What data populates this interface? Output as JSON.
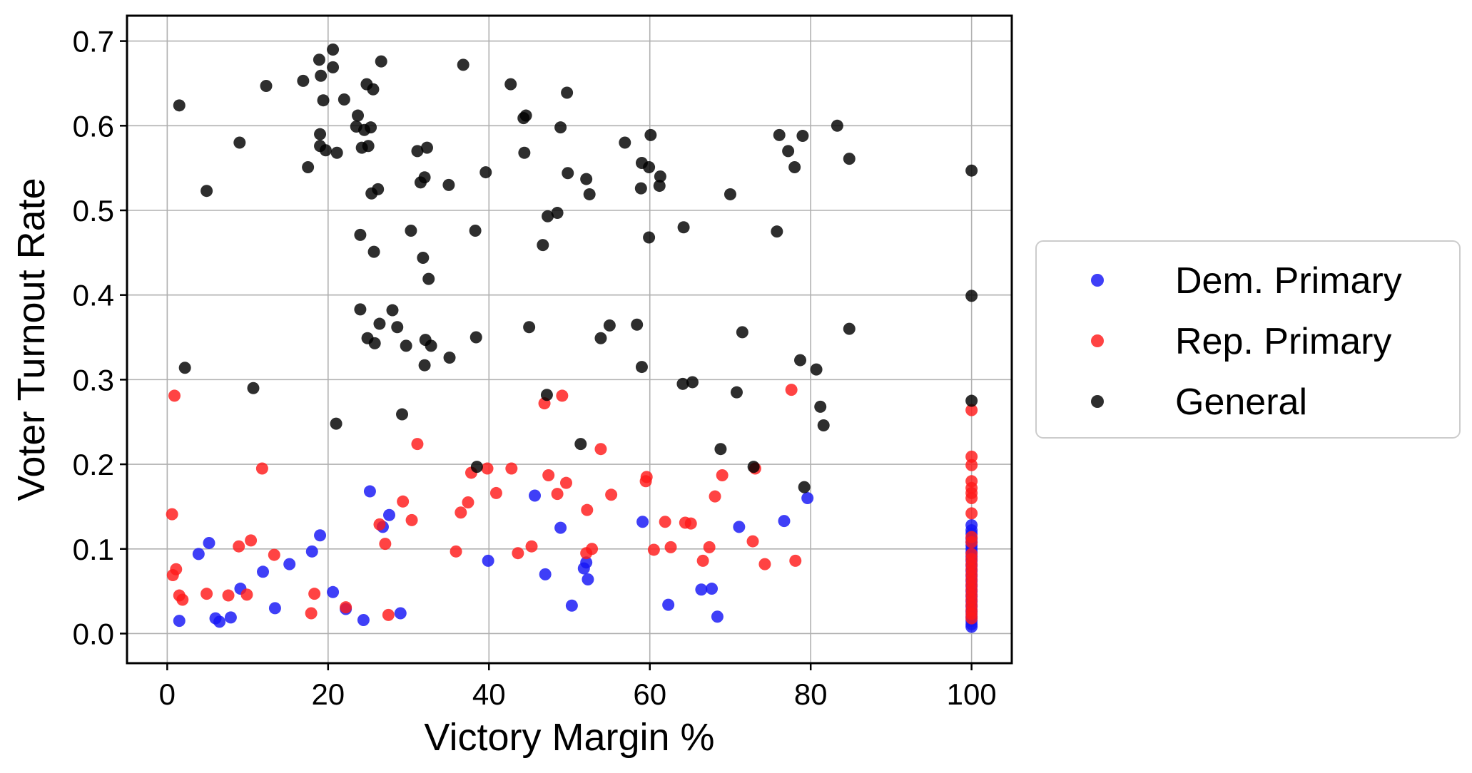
{
  "chart_data": {
    "type": "scatter",
    "xlabel": "Victory Margin %",
    "ylabel": "Voter Turnout Rate",
    "xlim": [
      -5,
      105
    ],
    "ylim": [
      -0.035,
      0.73
    ],
    "xticks": [
      0,
      20,
      40,
      60,
      80,
      100
    ],
    "yticks": [
      0.0,
      0.1,
      0.2,
      0.3,
      0.4,
      0.5,
      0.6,
      0.7
    ],
    "grid": true,
    "legend_placement": "center-right-outside",
    "series": [
      {
        "name": "Dem. Primary",
        "color": "#1515f5",
        "points": [
          [
            1.5,
            0.015
          ],
          [
            3.9,
            0.094
          ],
          [
            5.2,
            0.107
          ],
          [
            6.0,
            0.018
          ],
          [
            6.5,
            0.014
          ],
          [
            7.9,
            0.019
          ],
          [
            9.1,
            0.053
          ],
          [
            11.9,
            0.073
          ],
          [
            13.4,
            0.03
          ],
          [
            15.2,
            0.082
          ],
          [
            18.0,
            0.097
          ],
          [
            19.0,
            0.116
          ],
          [
            20.6,
            0.049
          ],
          [
            22.2,
            0.029
          ],
          [
            24.4,
            0.016
          ],
          [
            25.2,
            0.168
          ],
          [
            26.8,
            0.126
          ],
          [
            27.6,
            0.14
          ],
          [
            29.0,
            0.024
          ],
          [
            39.9,
            0.086
          ],
          [
            45.7,
            0.163
          ],
          [
            47.0,
            0.07
          ],
          [
            48.9,
            0.125
          ],
          [
            50.3,
            0.033
          ],
          [
            51.8,
            0.077
          ],
          [
            52.1,
            0.084
          ],
          [
            52.3,
            0.064
          ],
          [
            59.1,
            0.132
          ],
          [
            62.3,
            0.034
          ],
          [
            66.4,
            0.052
          ],
          [
            67.7,
            0.053
          ],
          [
            68.4,
            0.02
          ],
          [
            71.1,
            0.126
          ],
          [
            76.7,
            0.133
          ],
          [
            79.6,
            0.16
          ],
          [
            100,
            0.128
          ],
          [
            100,
            0.122
          ],
          [
            100,
            0.118
          ],
          [
            100,
            0.112
          ],
          [
            100,
            0.108
          ],
          [
            100,
            0.104
          ],
          [
            100,
            0.1
          ],
          [
            100,
            0.096
          ],
          [
            100,
            0.091
          ],
          [
            100,
            0.086
          ],
          [
            100,
            0.08
          ],
          [
            100,
            0.074
          ],
          [
            100,
            0.068
          ],
          [
            100,
            0.062
          ],
          [
            100,
            0.056
          ],
          [
            100,
            0.05
          ],
          [
            100,
            0.044
          ],
          [
            100,
            0.038
          ],
          [
            100,
            0.032
          ],
          [
            100,
            0.026
          ],
          [
            100,
            0.02
          ],
          [
            100,
            0.015
          ],
          [
            100,
            0.011
          ],
          [
            100,
            0.008
          ]
        ]
      },
      {
        "name": "Rep. Primary",
        "color": "#ff1a1a",
        "points": [
          [
            0.6,
            0.141
          ],
          [
            0.7,
            0.069
          ],
          [
            0.9,
            0.281
          ],
          [
            1.1,
            0.076
          ],
          [
            1.5,
            0.045
          ],
          [
            1.9,
            0.04
          ],
          [
            4.9,
            0.047
          ],
          [
            7.6,
            0.045
          ],
          [
            8.9,
            0.103
          ],
          [
            9.9,
            0.046
          ],
          [
            10.4,
            0.11
          ],
          [
            11.8,
            0.195
          ],
          [
            13.3,
            0.093
          ],
          [
            17.9,
            0.024
          ],
          [
            18.3,
            0.047
          ],
          [
            22.2,
            0.031
          ],
          [
            26.4,
            0.129
          ],
          [
            27.1,
            0.106
          ],
          [
            27.5,
            0.022
          ],
          [
            29.3,
            0.156
          ],
          [
            30.4,
            0.134
          ],
          [
            31.1,
            0.224
          ],
          [
            35.9,
            0.097
          ],
          [
            36.5,
            0.143
          ],
          [
            37.4,
            0.155
          ],
          [
            37.8,
            0.19
          ],
          [
            39.8,
            0.195
          ],
          [
            40.9,
            0.166
          ],
          [
            42.8,
            0.195
          ],
          [
            43.6,
            0.095
          ],
          [
            45.3,
            0.103
          ],
          [
            46.9,
            0.272
          ],
          [
            47.4,
            0.187
          ],
          [
            48.5,
            0.165
          ],
          [
            49.1,
            0.281
          ],
          [
            49.6,
            0.178
          ],
          [
            52.2,
            0.146
          ],
          [
            52.1,
            0.095
          ],
          [
            52.8,
            0.1
          ],
          [
            53.9,
            0.218
          ],
          [
            55.2,
            0.164
          ],
          [
            59.5,
            0.18
          ],
          [
            59.6,
            0.185
          ],
          [
            60.5,
            0.099
          ],
          [
            61.9,
            0.132
          ],
          [
            62.6,
            0.102
          ],
          [
            64.4,
            0.131
          ],
          [
            65.1,
            0.13
          ],
          [
            66.6,
            0.086
          ],
          [
            67.4,
            0.102
          ],
          [
            68.1,
            0.162
          ],
          [
            69.0,
            0.187
          ],
          [
            72.8,
            0.109
          ],
          [
            73.1,
            0.195
          ],
          [
            74.3,
            0.082
          ],
          [
            77.6,
            0.288
          ],
          [
            78.1,
            0.086
          ],
          [
            100,
            0.264
          ],
          [
            100,
            0.209
          ],
          [
            100,
            0.199
          ],
          [
            100,
            0.18
          ],
          [
            100,
            0.172
          ],
          [
            100,
            0.166
          ],
          [
            100,
            0.16
          ],
          [
            100,
            0.142
          ],
          [
            100,
            0.114
          ],
          [
            100,
            0.108
          ],
          [
            100,
            0.094
          ],
          [
            100,
            0.088
          ],
          [
            100,
            0.082
          ],
          [
            100,
            0.076
          ],
          [
            100,
            0.07
          ],
          [
            100,
            0.064
          ],
          [
            100,
            0.058
          ],
          [
            100,
            0.052
          ],
          [
            100,
            0.046
          ],
          [
            100,
            0.04
          ],
          [
            100,
            0.034
          ],
          [
            100,
            0.028
          ],
          [
            100,
            0.023
          ],
          [
            100,
            0.018
          ]
        ]
      },
      {
        "name": "General",
        "color": "#000000",
        "points": [
          [
            1.5,
            0.624
          ],
          [
            2.2,
            0.314
          ],
          [
            4.9,
            0.523
          ],
          [
            9.0,
            0.58
          ],
          [
            10.7,
            0.29
          ],
          [
            12.3,
            0.647
          ],
          [
            16.9,
            0.653
          ],
          [
            17.5,
            0.551
          ],
          [
            18.9,
            0.678
          ],
          [
            19.0,
            0.59
          ],
          [
            19.0,
            0.576
          ],
          [
            19.1,
            0.659
          ],
          [
            19.4,
            0.63
          ],
          [
            19.7,
            0.571
          ],
          [
            20.6,
            0.69
          ],
          [
            20.6,
            0.669
          ],
          [
            21.0,
            0.248
          ],
          [
            21.1,
            0.568
          ],
          [
            22.0,
            0.631
          ],
          [
            23.5,
            0.599
          ],
          [
            23.7,
            0.612
          ],
          [
            24.0,
            0.471
          ],
          [
            24.0,
            0.383
          ],
          [
            24.2,
            0.574
          ],
          [
            24.5,
            0.595
          ],
          [
            24.8,
            0.649
          ],
          [
            24.9,
            0.349
          ],
          [
            25.0,
            0.576
          ],
          [
            25.3,
            0.598
          ],
          [
            25.4,
            0.52
          ],
          [
            25.6,
            0.643
          ],
          [
            25.7,
            0.451
          ],
          [
            25.8,
            0.343
          ],
          [
            26.2,
            0.525
          ],
          [
            26.4,
            0.366
          ],
          [
            26.6,
            0.676
          ],
          [
            28.0,
            0.382
          ],
          [
            28.6,
            0.362
          ],
          [
            29.2,
            0.259
          ],
          [
            29.7,
            0.34
          ],
          [
            30.3,
            0.476
          ],
          [
            31.1,
            0.57
          ],
          [
            31.5,
            0.533
          ],
          [
            31.8,
            0.444
          ],
          [
            32.0,
            0.539
          ],
          [
            32.0,
            0.317
          ],
          [
            32.1,
            0.347
          ],
          [
            32.3,
            0.574
          ],
          [
            32.5,
            0.419
          ],
          [
            32.8,
            0.34
          ],
          [
            35.0,
            0.53
          ],
          [
            35.1,
            0.326
          ],
          [
            36.8,
            0.672
          ],
          [
            38.3,
            0.476
          ],
          [
            38.4,
            0.35
          ],
          [
            38.5,
            0.197
          ],
          [
            39.6,
            0.545
          ],
          [
            42.7,
            0.649
          ],
          [
            44.3,
            0.609
          ],
          [
            44.4,
            0.568
          ],
          [
            44.6,
            0.612
          ],
          [
            45.0,
            0.362
          ],
          [
            46.7,
            0.459
          ],
          [
            47.2,
            0.282
          ],
          [
            47.3,
            0.493
          ],
          [
            48.5,
            0.497
          ],
          [
            48.9,
            0.598
          ],
          [
            49.7,
            0.639
          ],
          [
            49.8,
            0.544
          ],
          [
            51.4,
            0.224
          ],
          [
            52.1,
            0.537
          ],
          [
            52.5,
            0.519
          ],
          [
            53.9,
            0.349
          ],
          [
            55.0,
            0.364
          ],
          [
            56.9,
            0.58
          ],
          [
            58.4,
            0.365
          ],
          [
            58.9,
            0.526
          ],
          [
            59.0,
            0.556
          ],
          [
            59.0,
            0.315
          ],
          [
            59.9,
            0.468
          ],
          [
            59.9,
            0.551
          ],
          [
            60.1,
            0.589
          ],
          [
            61.2,
            0.529
          ],
          [
            61.3,
            0.54
          ],
          [
            64.2,
            0.48
          ],
          [
            64.1,
            0.295
          ],
          [
            65.3,
            0.297
          ],
          [
            68.8,
            0.218
          ],
          [
            70.0,
            0.519
          ],
          [
            70.8,
            0.285
          ],
          [
            71.5,
            0.356
          ],
          [
            72.9,
            0.197
          ],
          [
            75.8,
            0.475
          ],
          [
            76.1,
            0.589
          ],
          [
            77.2,
            0.57
          ],
          [
            78.0,
            0.551
          ],
          [
            78.7,
            0.323
          ],
          [
            79.0,
            0.588
          ],
          [
            79.2,
            0.173
          ],
          [
            80.7,
            0.312
          ],
          [
            81.2,
            0.268
          ],
          [
            81.6,
            0.246
          ],
          [
            83.3,
            0.6
          ],
          [
            84.8,
            0.561
          ],
          [
            84.8,
            0.36
          ],
          [
            100,
            0.547
          ],
          [
            100,
            0.399
          ],
          [
            100,
            0.275
          ]
        ]
      }
    ]
  }
}
